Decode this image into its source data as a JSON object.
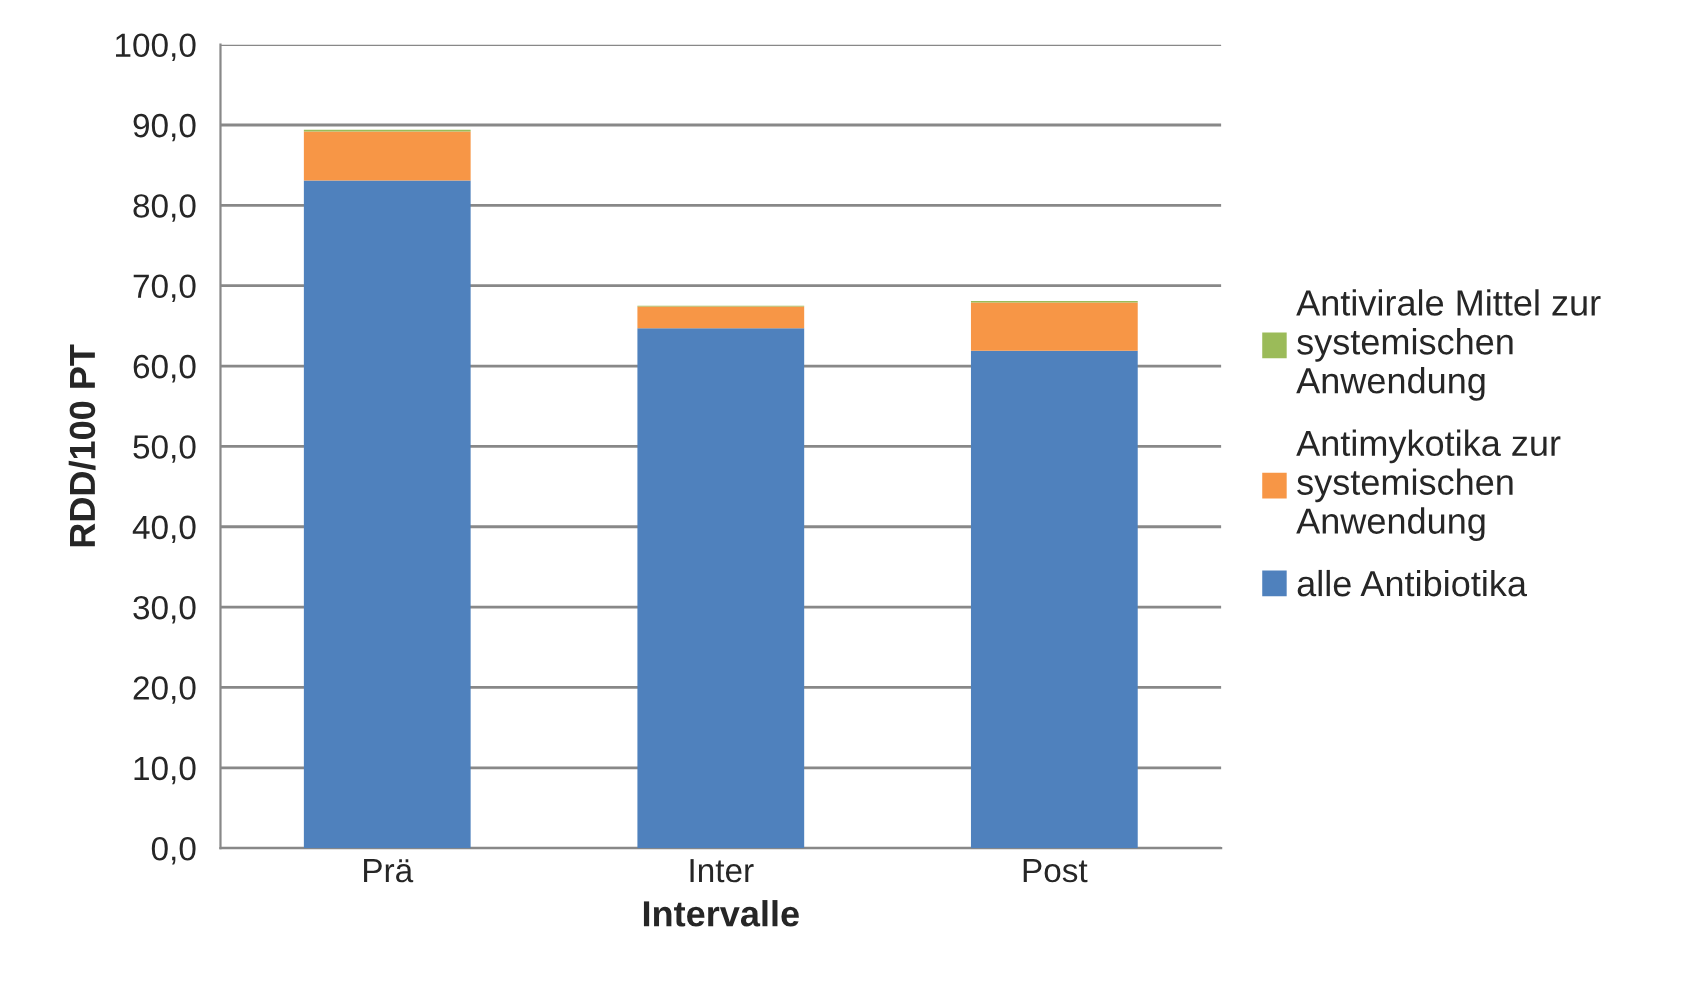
{
  "chart_data": {
    "type": "bar",
    "stacked": true,
    "xlabel": "Intervalle",
    "ylabel": "RDD/100 PT",
    "categories": [
      "Prä",
      "Inter",
      "Post"
    ],
    "series": [
      {
        "name": "alle Antibiotika",
        "color": "#4f81bd",
        "values": [
          83.1,
          64.7,
          61.9
        ]
      },
      {
        "name": "Antimykotika zur\nsystemischen\nAnwendung",
        "color": "#f79646",
        "values": [
          6.1,
          2.7,
          6.0
        ]
      },
      {
        "name": "Antivirale Mittel zur\nsystemischen\nAnwendung",
        "color": "#9bbb59",
        "values": [
          0.2,
          0.1,
          0.2
        ]
      }
    ],
    "ylim": [
      0,
      100
    ],
    "yticks": [
      {
        "value": 0,
        "label": "0,0"
      },
      {
        "value": 10,
        "label": "10,0"
      },
      {
        "value": 20,
        "label": "20,0"
      },
      {
        "value": 30,
        "label": "30,0"
      },
      {
        "value": 40,
        "label": "40,0"
      },
      {
        "value": 50,
        "label": "50,0"
      },
      {
        "value": 60,
        "label": "60,0"
      },
      {
        "value": 70,
        "label": "70,0"
      },
      {
        "value": 80,
        "label": "80,0"
      },
      {
        "value": 90,
        "label": "90,0"
      },
      {
        "value": 100,
        "label": "100,0"
      }
    ],
    "grid": "y",
    "legend": "right"
  }
}
